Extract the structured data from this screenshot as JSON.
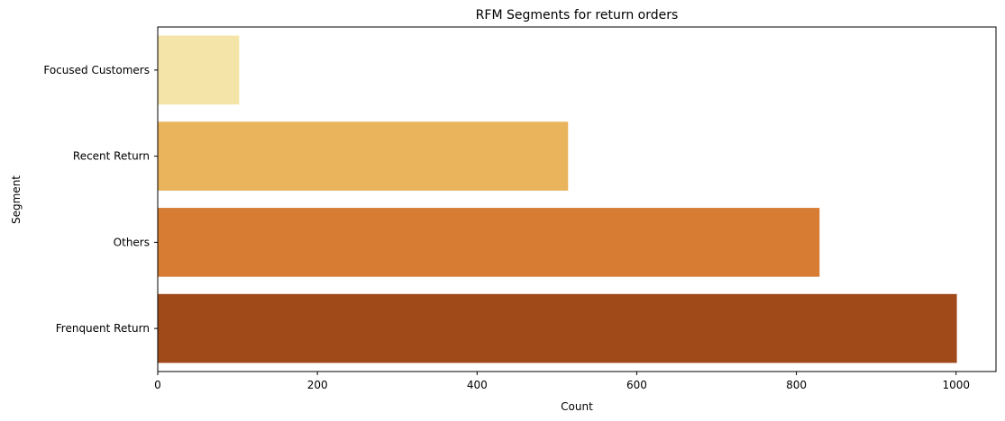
{
  "chart_data": {
    "type": "bar",
    "orientation": "horizontal",
    "title": "RFM Segments for return orders",
    "xlabel": "Count",
    "ylabel": "Segment",
    "categories": [
      "Focused Customers",
      "Recent Return",
      "Others",
      "Frenquent Return"
    ],
    "values": [
      102,
      514,
      829,
      1001
    ],
    "colors": [
      "#f4e4a8",
      "#e9b45c",
      "#d67c33",
      "#a04a1a"
    ],
    "xlim": [
      0,
      1050
    ],
    "xticks": [
      0,
      200,
      400,
      600,
      800,
      1000
    ],
    "grid": false,
    "legend": "none"
  }
}
